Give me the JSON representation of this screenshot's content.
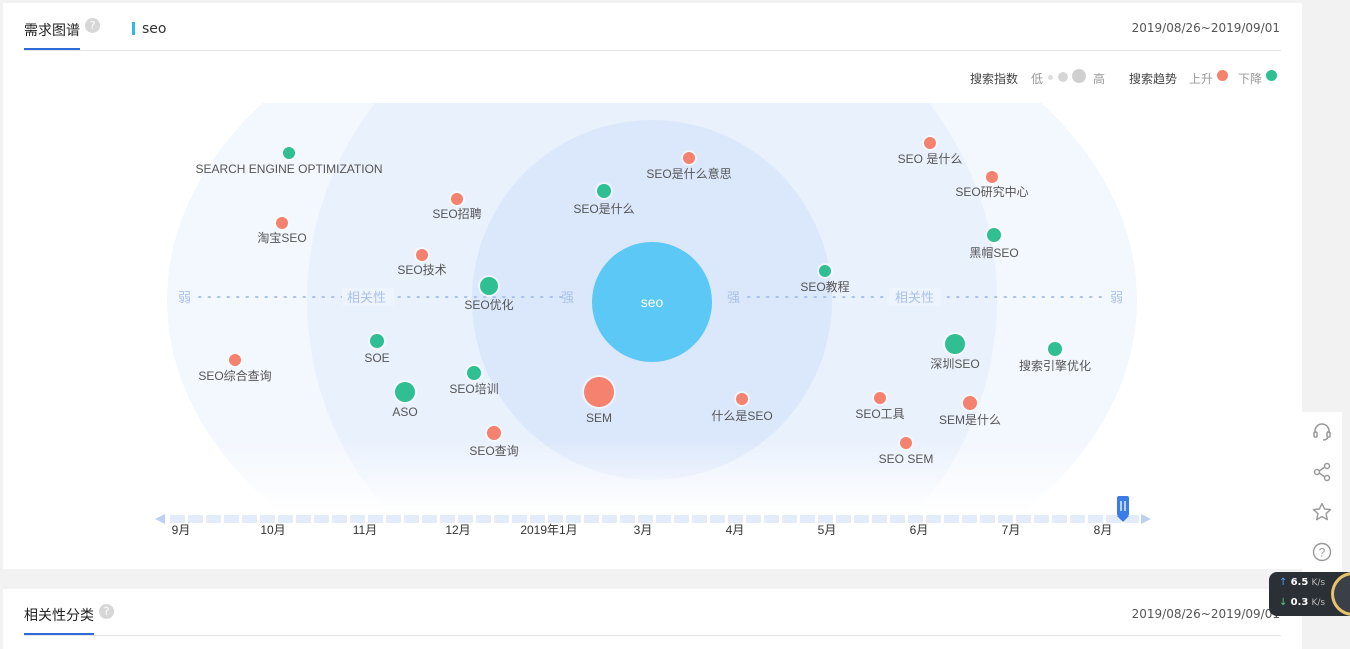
{
  "section1": {
    "title": "需求图谱",
    "keyword": "seo",
    "date_range": "2019/08/26~2019/09/01",
    "help": "?"
  },
  "legend": {
    "search_index_label": "搜索指数",
    "low": "低",
    "high": "高",
    "trend_label": "搜索趋势",
    "up": "上升",
    "down": "下降",
    "up_color": "#f5826e",
    "down_color": "#2fbf93"
  },
  "graph": {
    "center": "seo",
    "axis_left_weak": "弱",
    "axis_left_rel": "相关性",
    "axis_left_strong": "强",
    "axis_right_strong": "强",
    "axis_right_rel": "相关性",
    "axis_right_weak": "弱",
    "nodes": [
      {
        "label": "SEARCH ENGINE OPTIMIZATION",
        "trend": "down"
      },
      {
        "label": "淘宝SEO",
        "trend": "up"
      },
      {
        "label": "SEO招聘",
        "trend": "up"
      },
      {
        "label": "SEO技术",
        "trend": "up"
      },
      {
        "label": "SEO优化",
        "trend": "down"
      },
      {
        "label": "SOE",
        "trend": "down"
      },
      {
        "label": "SEO综合查询",
        "trend": "up"
      },
      {
        "label": "ASO",
        "trend": "down"
      },
      {
        "label": "SEO培训",
        "trend": "down"
      },
      {
        "label": "SEO查询",
        "trend": "up"
      },
      {
        "label": "SEO是什么",
        "trend": "down"
      },
      {
        "label": "SEO是什么意思",
        "trend": "up"
      },
      {
        "label": "SEM",
        "trend": "up"
      },
      {
        "label": "什么是SEO",
        "trend": "up"
      },
      {
        "label": "SEO教程",
        "trend": "down"
      },
      {
        "label": "SEO 是什么",
        "trend": "up"
      },
      {
        "label": "SEO研究中心",
        "trend": "up"
      },
      {
        "label": "黑帽SEO",
        "trend": "down"
      },
      {
        "label": "深圳SEO",
        "trend": "down"
      },
      {
        "label": "搜索引擎优化",
        "trend": "down"
      },
      {
        "label": "SEO工具",
        "trend": "up"
      },
      {
        "label": "SEM是什么",
        "trend": "up"
      },
      {
        "label": "SEO SEM",
        "trend": "up"
      }
    ]
  },
  "timeline": {
    "months": [
      "9月",
      "10月",
      "11月",
      "12月",
      "2019年1月",
      "3月",
      "4月",
      "5月",
      "6月",
      "7月",
      "8月"
    ]
  },
  "section2": {
    "title": "相关性分类",
    "date_range": "2019/08/26~2019/09/01",
    "help": "?"
  },
  "speed": {
    "up": "6.5",
    "down": "0.3",
    "unit": "K/s"
  },
  "side_tools": [
    "headset-icon",
    "share-icon",
    "star-icon",
    "help-icon"
  ]
}
